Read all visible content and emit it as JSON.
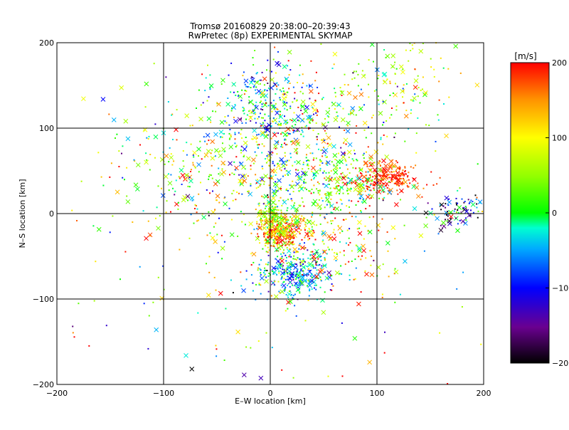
{
  "chart_data": {
    "type": "scatter",
    "title": "Tromsø 20160829 20:38:00–20:39:43",
    "subtitle": "RwPretec (8p) EXPERIMENTAL SKYMAP",
    "xlabel": "E–W location [km]",
    "ylabel": "N–S location [km]",
    "xlim": [
      -200,
      200
    ],
    "ylim": [
      -200,
      200
    ],
    "xticks": [
      -200,
      -100,
      0,
      100,
      200
    ],
    "yticks": [
      -200,
      -100,
      0,
      100,
      200
    ],
    "grid": true,
    "colorbar": {
      "label": "[m/s]",
      "range": [
        -200,
        200
      ],
      "ticks": [
        200,
        100,
        0,
        -100,
        -200
      ],
      "colormap": "rainbow (black→purple→blue→cyan→green→yellow→orange→red)"
    },
    "clusters": [
      {
        "x": 10,
        "y": -20,
        "sx": 12,
        "sy": 10,
        "n": 260,
        "v": 150,
        "sv": 60
      },
      {
        "x": 5,
        "y": -5,
        "sx": 10,
        "sy": 10,
        "n": 160,
        "v": 60,
        "sv": 40
      },
      {
        "x": 25,
        "y": -70,
        "sx": 20,
        "sy": 15,
        "n": 320,
        "v": -40,
        "sv": 50
      },
      {
        "x": 110,
        "y": 40,
        "sx": 15,
        "sy": 10,
        "n": 230,
        "v": 180,
        "sv": 25
      },
      {
        "x": 60,
        "y": 35,
        "sx": 25,
        "sy": 20,
        "n": 200,
        "v": 20,
        "sv": 50
      },
      {
        "x": 175,
        "y": 5,
        "sx": 12,
        "sy": 10,
        "n": 90,
        "v": -100,
        "sv": 90
      },
      {
        "x": -5,
        "y": 130,
        "sx": 25,
        "sy": 25,
        "n": 220,
        "v": -40,
        "sv": 60
      },
      {
        "x": 20,
        "y": 80,
        "sx": 40,
        "sy": 40,
        "n": 420,
        "v": 40,
        "sv": 90
      },
      {
        "x": 120,
        "y": 150,
        "sx": 30,
        "sy": 35,
        "n": 140,
        "v": 60,
        "sv": 50
      },
      {
        "x": -60,
        "y": 50,
        "sx": 40,
        "sy": 40,
        "n": 230,
        "v": 60,
        "sv": 100
      },
      {
        "x": 60,
        "y": -30,
        "sx": 30,
        "sy": 25,
        "n": 160,
        "v": 130,
        "sv": 80
      },
      {
        "x": 0,
        "y": 0,
        "sx": 110,
        "sy": 110,
        "n": 320,
        "v": 50,
        "sv": 120
      }
    ],
    "point_markers": [
      "dot",
      "cross"
    ]
  }
}
